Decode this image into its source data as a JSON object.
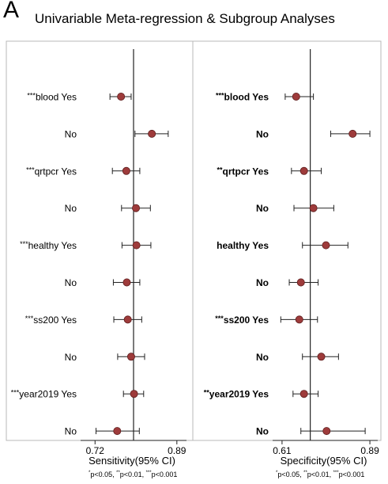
{
  "panel_letter": "A",
  "title": "Univariable Meta-regression & Subgroup Analyses",
  "colors": {
    "marker": "#9e3b3b",
    "marker_edge": "#5e1f1f",
    "line": "#222222",
    "panel_border": "#b8b8b8"
  },
  "chart_data": [
    {
      "type": "scatter",
      "subtype": "forest-plot",
      "xlabel": "Sensitivity(95% CI)",
      "xlim": [
        0.69,
        0.91
      ],
      "xticks": [
        0.72,
        0.89
      ],
      "xtick_labels": [
        "0.72",
        "0.89"
      ],
      "reference_line": 0.8,
      "bold_labels": false,
      "rows": [
        {
          "stars": "***",
          "label": "blood Yes",
          "est": 0.774,
          "lo": 0.751,
          "hi": 0.795
        },
        {
          "stars": "",
          "label": "No",
          "est": 0.838,
          "lo": 0.803,
          "hi": 0.872
        },
        {
          "stars": "***",
          "label": "qrtpcr Yes",
          "est": 0.785,
          "lo": 0.756,
          "hi": 0.813
        },
        {
          "stars": "",
          "label": "No",
          "est": 0.805,
          "lo": 0.775,
          "hi": 0.835
        },
        {
          "stars": "***",
          "label": "healthy Yes",
          "est": 0.806,
          "lo": 0.776,
          "hi": 0.836
        },
        {
          "stars": "",
          "label": "No",
          "est": 0.786,
          "lo": 0.758,
          "hi": 0.813
        },
        {
          "stars": "***",
          "label": "ss200 Yes",
          "est": 0.788,
          "lo": 0.759,
          "hi": 0.817
        },
        {
          "stars": "",
          "label": "No",
          "est": 0.795,
          "lo": 0.767,
          "hi": 0.823
        },
        {
          "stars": "***",
          "label": "year2019 Yes",
          "est": 0.801,
          "lo": 0.779,
          "hi": 0.821
        },
        {
          "stars": "",
          "label": "No",
          "est": 0.766,
          "lo": 0.722,
          "hi": 0.812
        }
      ],
      "footnote": [
        {
          "sym": "*",
          "text": "p<0.05, "
        },
        {
          "sym": "**",
          "text": "p<0.01, "
        },
        {
          "sym": "***",
          "text": "p<0.001"
        }
      ]
    },
    {
      "type": "scatter",
      "subtype": "forest-plot",
      "xlabel": "Specificity(95% CI)",
      "xlim": [
        0.58,
        0.915
      ],
      "xticks": [
        0.61,
        0.89
      ],
      "xtick_labels": [
        "0.61",
        "0.89"
      ],
      "reference_line": 0.7,
      "bold_labels": true,
      "rows": [
        {
          "stars": "***",
          "label": "blood Yes",
          "est": 0.655,
          "lo": 0.62,
          "hi": 0.71
        },
        {
          "stars": "",
          "label": "No",
          "est": 0.835,
          "lo": 0.765,
          "hi": 0.89
        },
        {
          "stars": "**",
          "label": "qrtpcr Yes",
          "est": 0.68,
          "lo": 0.64,
          "hi": 0.735
        },
        {
          "stars": "",
          "label": "No",
          "est": 0.71,
          "lo": 0.648,
          "hi": 0.775
        },
        {
          "stars": "",
          "label": "healthy Yes",
          "est": 0.75,
          "lo": 0.675,
          "hi": 0.82
        },
        {
          "stars": "",
          "label": "No",
          "est": 0.67,
          "lo": 0.633,
          "hi": 0.725
        },
        {
          "stars": "***",
          "label": "ss200 Yes",
          "est": 0.665,
          "lo": 0.606,
          "hi": 0.723
        },
        {
          "stars": "",
          "label": "No",
          "est": 0.735,
          "lo": 0.675,
          "hi": 0.79
        },
        {
          "stars": "**",
          "label": "year2019 Yes",
          "est": 0.68,
          "lo": 0.645,
          "hi": 0.725
        },
        {
          "stars": "",
          "label": "No",
          "est": 0.752,
          "lo": 0.67,
          "hi": 0.875
        }
      ],
      "footnote": [
        {
          "sym": "*",
          "text": "p<0.05, "
        },
        {
          "sym": "**",
          "text": "p<0.01, "
        },
        {
          "sym": "***",
          "text": "p<0.001"
        }
      ]
    }
  ]
}
